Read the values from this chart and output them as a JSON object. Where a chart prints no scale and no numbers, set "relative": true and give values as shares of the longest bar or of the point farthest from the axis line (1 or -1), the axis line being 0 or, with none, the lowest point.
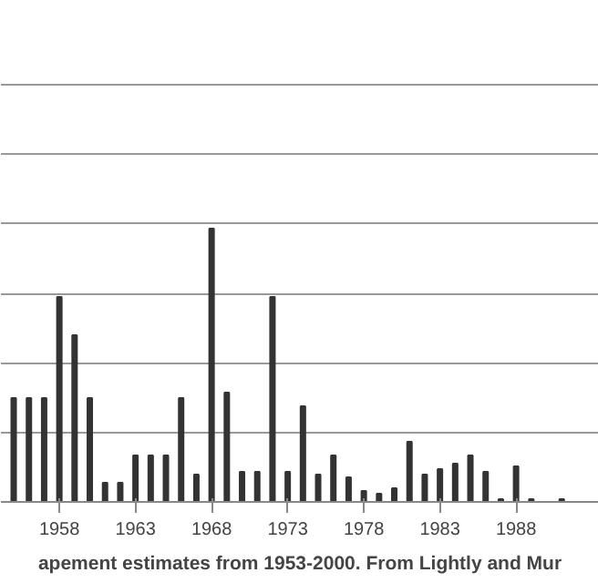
{
  "chart_data": {
    "type": "bar",
    "relative": true,
    "grid": "y",
    "annotations": [
      "apement estimates from 1953-2000. From Lightly and Mur"
    ],
    "categories": [
      null,
      null,
      null,
      "1958",
      null,
      null,
      null,
      null,
      "1963",
      null,
      null,
      null,
      null,
      "1968",
      null,
      null,
      null,
      null,
      "1973",
      null,
      null,
      null,
      null,
      "1978",
      null,
      null,
      null,
      null,
      "1983",
      null,
      null,
      null,
      null,
      "1988",
      null,
      null,
      null,
      null
    ],
    "series": [
      {
        "color": "#333333",
        "values": [
          0.38,
          0.38,
          0.38,
          0.75,
          0.61,
          0.38,
          0.07,
          0.07,
          0.17,
          0.17,
          0.17,
          0.38,
          0.1,
          1,
          0.4,
          0.11,
          0.11,
          0.75,
          0.11,
          0.35,
          0.1,
          0.17,
          0.09,
          0.04,
          0.03,
          0.05,
          0.22,
          0.1,
          0.12,
          0.14,
          0.17,
          0.11,
          0.01,
          0.13,
          0.01,
          0,
          0.01,
          0
        ]
      }
    ]
  }
}
